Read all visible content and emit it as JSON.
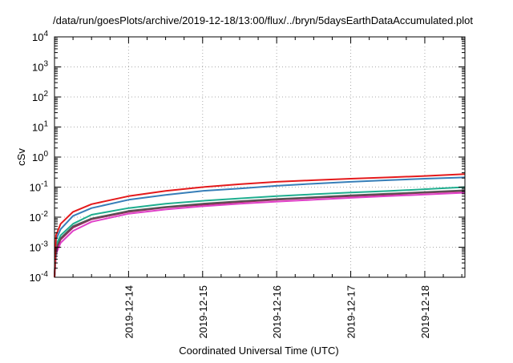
{
  "chart_data": {
    "type": "line",
    "title": "/data/run/goesPlots/archive/2019-12-18/13:00/flux/../bryn/5daysEarthDataAccumulated.plot",
    "xlabel": "Coordinated Universal Time (UTC)",
    "ylabel": "cSv",
    "x_type": "date",
    "xlim": [
      "2019-12-13T00:00",
      "2019-12-18T13:00"
    ],
    "x_ticks": [
      "2019-12-14",
      "2019-12-15",
      "2019-12-16",
      "2019-12-17",
      "2019-12-18"
    ],
    "y_scale": "log",
    "ylim": [
      0.0001,
      10000
    ],
    "y_ticks": [
      {
        "value": 0.0001,
        "base": "10",
        "exp": "-4"
      },
      {
        "value": 0.001,
        "base": "10",
        "exp": "-3"
      },
      {
        "value": 0.01,
        "base": "10",
        "exp": "-2"
      },
      {
        "value": 0.1,
        "base": "10",
        "exp": "-1"
      },
      {
        "value": 1,
        "base": "10",
        "exp": "0"
      },
      {
        "value": 10,
        "base": "10",
        "exp": "1"
      },
      {
        "value": 100,
        "base": "10",
        "exp": "2"
      },
      {
        "value": 1000,
        "base": "10",
        "exp": "3"
      },
      {
        "value": 10000,
        "base": "10",
        "exp": "4"
      }
    ],
    "grid": true,
    "legend": "none",
    "x": [
      "2019-12-13T00:00",
      "2019-12-13T00:30",
      "2019-12-13T02:00",
      "2019-12-13T06:00",
      "2019-12-13T12:00",
      "2019-12-14T00:00",
      "2019-12-14T12:00",
      "2019-12-15T00:00",
      "2019-12-15T12:00",
      "2019-12-16T00:00",
      "2019-12-16T12:00",
      "2019-12-17T00:00",
      "2019-12-17T12:00",
      "2019-12-18T00:00",
      "2019-12-18T13:00"
    ],
    "series": [
      {
        "color": "#e41a1c",
        "values": [
          0.0001,
          0.0025,
          0.006,
          0.015,
          0.027,
          0.05,
          0.075,
          0.1,
          0.125,
          0.15,
          0.17,
          0.19,
          0.21,
          0.235,
          0.27
        ]
      },
      {
        "color": "#377eb8",
        "values": [
          0.0001,
          0.0018,
          0.004,
          0.011,
          0.02,
          0.038,
          0.055,
          0.075,
          0.09,
          0.11,
          0.13,
          0.15,
          0.17,
          0.19,
          0.21
        ]
      },
      {
        "color": "#1fae8f",
        "values": [
          0.0001,
          0.0012,
          0.0025,
          0.006,
          0.012,
          0.02,
          0.028,
          0.035,
          0.042,
          0.05,
          0.058,
          0.066,
          0.074,
          0.085,
          0.1
        ]
      },
      {
        "color": "#555555",
        "values": [
          0.0001,
          0.001,
          0.002,
          0.005,
          0.009,
          0.016,
          0.022,
          0.028,
          0.034,
          0.04,
          0.046,
          0.053,
          0.06,
          0.068,
          0.078
        ]
      },
      {
        "color": "#a0225e",
        "values": [
          0.0001,
          0.0008,
          0.0018,
          0.0045,
          0.0085,
          0.015,
          0.021,
          0.026,
          0.032,
          0.038,
          0.044,
          0.05,
          0.057,
          0.065,
          0.074
        ]
      },
      {
        "color": "#e040c8",
        "values": [
          0.0001,
          0.0006,
          0.0014,
          0.0035,
          0.007,
          0.013,
          0.018,
          0.023,
          0.028,
          0.033,
          0.038,
          0.044,
          0.05,
          0.057,
          0.065
        ]
      }
    ]
  }
}
